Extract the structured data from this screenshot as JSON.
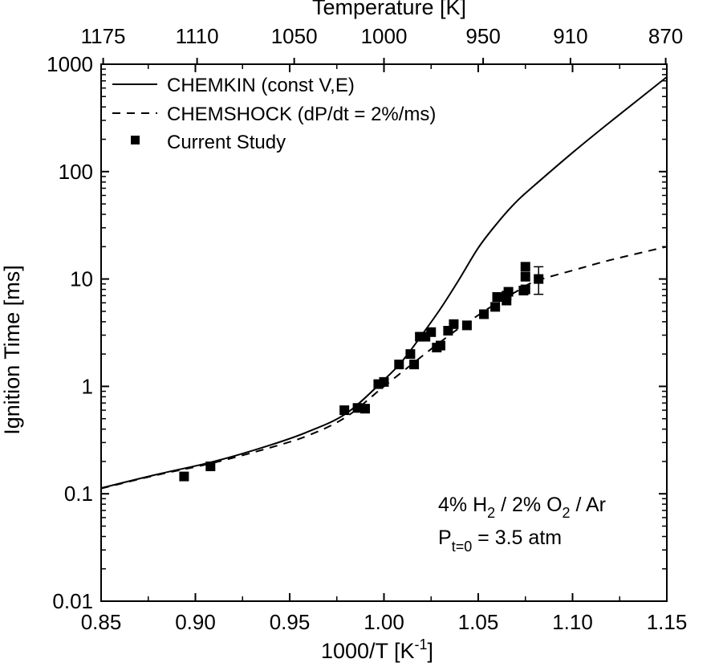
{
  "chart_data": {
    "type": "scatter",
    "title": "",
    "xlabel": "1000/T  [K",
    "xlabel_sup": "-1",
    "xlabel_end": "]",
    "ylabel": "Ignition Time  [ms]",
    "top_label": "Temperature [K]",
    "xlim": [
      0.85,
      1.15
    ],
    "ylim": [
      0.01,
      1000
    ],
    "yscale": "log",
    "grid": false,
    "x_ticks": [
      0.85,
      0.9,
      0.95,
      1.0,
      1.05,
      1.1,
      1.15
    ],
    "x_tick_labels": [
      "0.85",
      "0.90",
      "0.95",
      "1.00",
      "1.05",
      "1.10",
      "1.15"
    ],
    "y_ticks": [
      0.01,
      0.1,
      1,
      10,
      100,
      1000
    ],
    "y_tick_labels": [
      "0.01",
      "0.1",
      "1",
      "10",
      "100",
      "1000"
    ],
    "top_ticks": [
      {
        "label": "1175",
        "x": 0.8511
      },
      {
        "label": "1110",
        "x": 0.9009
      },
      {
        "label": "1050",
        "x": 0.9524
      },
      {
        "label": "1000",
        "x": 1.0
      },
      {
        "label": "950",
        "x": 1.0526
      },
      {
        "label": "910",
        "x": 1.0989
      },
      {
        "label": "870",
        "x": 1.1494
      }
    ],
    "legend_position": "top-left",
    "series": [
      {
        "name": "CHEMKIN (const V,E)",
        "style": "solid",
        "x": [
          0.85,
          0.88,
          0.91,
          0.94,
          0.96,
          0.98,
          1.0,
          1.01,
          1.02,
          1.03,
          1.04,
          1.05,
          1.06,
          1.07,
          1.08,
          1.1,
          1.12,
          1.15
        ],
        "y": [
          0.113,
          0.152,
          0.2,
          0.285,
          0.38,
          0.56,
          1.15,
          1.75,
          3.0,
          5.3,
          10,
          19.5,
          33,
          52,
          75,
          150,
          290,
          760
        ]
      },
      {
        "name": "CHEMSHOCK (dP/dt = 2%/ms)",
        "style": "dashed",
        "x": [
          0.85,
          0.88,
          0.91,
          0.94,
          0.96,
          0.98,
          1.0,
          1.02,
          1.03,
          1.04,
          1.05,
          1.06,
          1.07,
          1.08,
          1.1,
          1.12,
          1.15
        ],
        "y": [
          0.112,
          0.15,
          0.195,
          0.27,
          0.35,
          0.52,
          1.0,
          1.9,
          2.6,
          3.5,
          4.6,
          6.0,
          7.6,
          9.5,
          12.0,
          15.0,
          20.0
        ]
      },
      {
        "name": "Current Study",
        "style": "markers",
        "x": [
          0.894,
          0.908,
          0.979,
          0.986,
          0.99,
          0.997,
          1.0,
          1.008,
          1.014,
          1.016,
          1.019,
          1.022,
          1.025,
          1.028,
          1.03,
          1.034,
          1.037,
          1.044,
          1.053,
          1.059,
          1.06,
          1.065,
          1.065,
          1.066,
          1.074,
          1.075,
          1.075,
          1.075,
          1.082
        ],
        "y": [
          0.145,
          0.18,
          0.6,
          0.63,
          0.62,
          1.05,
          1.1,
          1.6,
          2.0,
          1.6,
          2.9,
          2.9,
          3.2,
          2.3,
          2.4,
          3.3,
          3.8,
          3.7,
          4.7,
          5.5,
          6.8,
          6.3,
          7.0,
          7.6,
          7.8,
          8.0,
          10.5,
          13.0,
          10.0
        ]
      }
    ],
    "error_bar": {
      "x": 1.082,
      "y": 10.0,
      "low": 7.2,
      "high": 13.0
    },
    "annotations": [
      {
        "prefix": "4% H",
        "sub1": "2",
        "middle": " / 2% O",
        "sub2": "2",
        "suffix": " / Ar"
      },
      {
        "prefix": "P",
        "sub": "t=0",
        "suffix": " = 3.5 atm"
      }
    ]
  }
}
